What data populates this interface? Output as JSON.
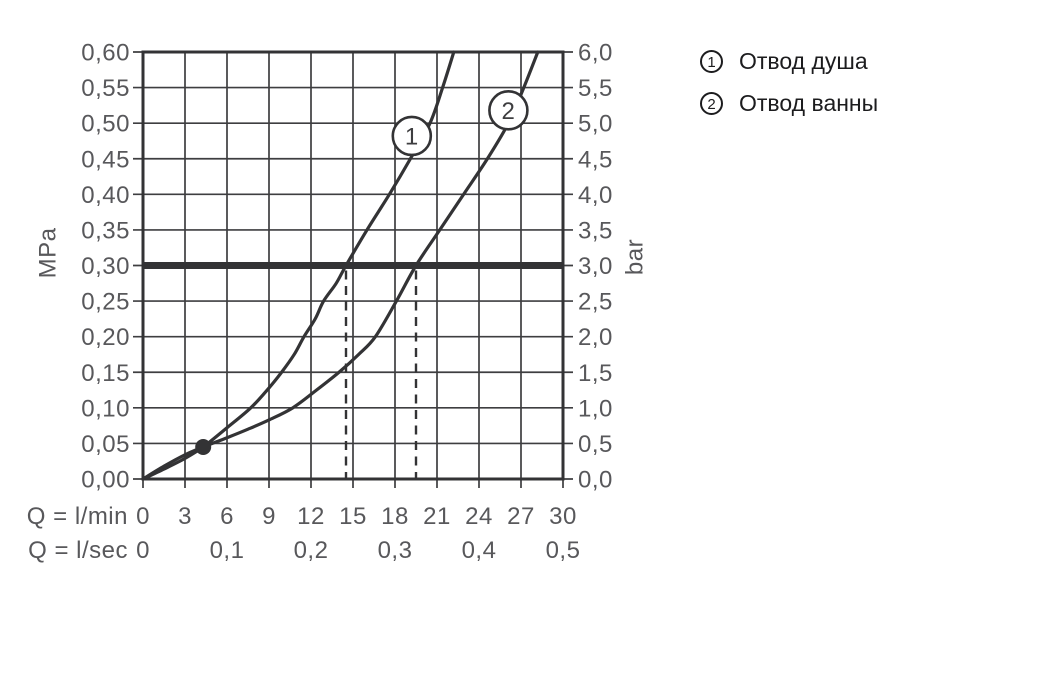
{
  "legend": {
    "items": [
      {
        "marker": "1",
        "label": "Отвод душа"
      },
      {
        "marker": "2",
        "label": "Отвод ванны"
      }
    ]
  },
  "chart_data": {
    "type": "line",
    "title": "",
    "x_axis": {
      "primary_label": "Q = l/min",
      "secondary_label": "Q = l/sec",
      "range_lmin": [
        0,
        30
      ],
      "ticks_lmin": [
        "0",
        "3",
        "6",
        "9",
        "12",
        "15",
        "18",
        "21",
        "24",
        "27",
        "30"
      ],
      "ticks_lsec": [
        "0",
        "0,1",
        "0,2",
        "0,3",
        "0,4",
        "0,5"
      ],
      "ticks_lsec_positions_lmin": [
        0,
        6,
        12,
        18,
        24,
        30
      ]
    },
    "y_axis_left": {
      "unit": "MPa",
      "range_mpa": [
        0,
        0.6
      ],
      "ticks_bottom_to_top": [
        "0,00",
        "0,05",
        "0,10",
        "0,15",
        "0,20",
        "0,25",
        "0,30",
        "0,35",
        "0,40",
        "0,45",
        "0,50",
        "0,55",
        "0,60"
      ]
    },
    "y_axis_right": {
      "unit": "bar",
      "range_bar": [
        0,
        6
      ],
      "ticks_bottom_to_top": [
        "0,0",
        "0,5",
        "1,0",
        "1,5",
        "2,0",
        "2,5",
        "3,0",
        "3,5",
        "4,0",
        "4,5",
        "5,0",
        "5,5",
        "6,0"
      ]
    },
    "grid": true,
    "reference_line_mpa": 0.3,
    "guide_lines_lmin": [
      14.5,
      19.5
    ],
    "operating_point": {
      "q_lmin": 4.3,
      "p_mpa": 0.045
    },
    "series": [
      {
        "marker": "1",
        "name": "Отвод душа",
        "marker_pos": {
          "q_lmin": 19.2,
          "p_mpa": 0.482
        },
        "points": [
          [
            0,
            0
          ],
          [
            1.5,
            0.014
          ],
          [
            3,
            0.029
          ],
          [
            4.3,
            0.045
          ],
          [
            6,
            0.072
          ],
          [
            7.7,
            0.1
          ],
          [
            9,
            0.128
          ],
          [
            9.9,
            0.15
          ],
          [
            10.8,
            0.175
          ],
          [
            11.5,
            0.2
          ],
          [
            12.3,
            0.225
          ],
          [
            12.9,
            0.25
          ],
          [
            13.8,
            0.275
          ],
          [
            14.5,
            0.3
          ],
          [
            16,
            0.35
          ],
          [
            17.6,
            0.4
          ],
          [
            19.1,
            0.45
          ],
          [
            20.5,
            0.5
          ],
          [
            21.4,
            0.55
          ],
          [
            22.2,
            0.6
          ]
        ]
      },
      {
        "marker": "2",
        "name": "Отвод ванны",
        "marker_pos": {
          "q_lmin": 26.1,
          "p_mpa": 0.518
        },
        "points": [
          [
            0,
            0
          ],
          [
            1.5,
            0.018
          ],
          [
            3,
            0.034
          ],
          [
            4.3,
            0.045
          ],
          [
            6,
            0.058
          ],
          [
            7.5,
            0.07
          ],
          [
            9,
            0.083
          ],
          [
            10.7,
            0.1
          ],
          [
            12.4,
            0.125
          ],
          [
            14,
            0.15
          ],
          [
            15.4,
            0.175
          ],
          [
            16.6,
            0.2
          ],
          [
            18.1,
            0.25
          ],
          [
            19.5,
            0.3
          ],
          [
            21.2,
            0.35
          ],
          [
            22.9,
            0.4
          ],
          [
            24.6,
            0.45
          ],
          [
            26.1,
            0.5
          ],
          [
            27.2,
            0.55
          ],
          [
            28.2,
            0.6
          ]
        ]
      }
    ],
    "colors": {
      "curve": "#333335",
      "grid": "#3e3e40",
      "axis_text": "#58585b",
      "legend_text": "#1c1c1e"
    }
  }
}
